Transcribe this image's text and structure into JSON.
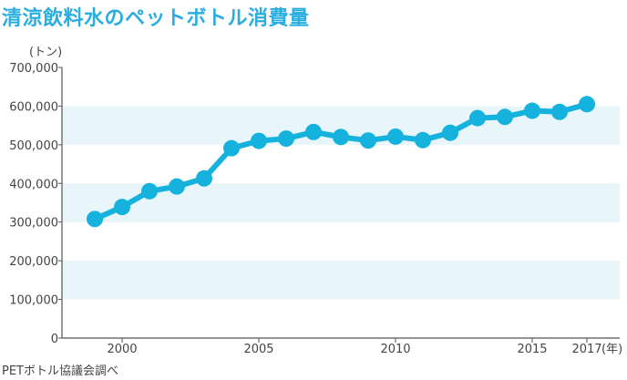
{
  "title": "清涼飲料水のペットボトル消費量",
  "source": "PETボトル協議会調べ",
  "colors": {
    "title": "#2aaee0",
    "line": "#16b2de",
    "band": "#e8f5fb",
    "axis": "#555555",
    "text": "#444444"
  },
  "chart_data": {
    "type": "line",
    "title": "清涼飲料水のペットボトル消費量",
    "ylabel": "(トン)",
    "xlabel": "(年)",
    "ylim": [
      0,
      700000
    ],
    "xlim": [
      1997.8,
      2018.2
    ],
    "yticks": [
      0,
      100000,
      200000,
      300000,
      400000,
      500000,
      600000,
      700000
    ],
    "ytick_labels": [
      "0",
      "100,000",
      "200,000",
      "300,000",
      "400,000",
      "500,000",
      "600,000",
      "700,000"
    ],
    "xticks": [
      2000,
      2005,
      2010,
      2015,
      2017
    ],
    "xtick_labels": [
      "2000",
      "2005",
      "2010",
      "2015",
      "2017"
    ],
    "grid": "alternating horizontal bands",
    "series": [
      {
        "x": [
          1999,
          2000,
          2001,
          2002,
          2003,
          2004,
          2005,
          2006,
          2007,
          2008,
          2009,
          2010,
          2011,
          2012,
          2013,
          2014,
          2015,
          2016,
          2017
        ],
        "values": [
          308000,
          339000,
          380000,
          392000,
          413000,
          491000,
          510000,
          516000,
          533000,
          520000,
          511000,
          521000,
          512000,
          531000,
          569000,
          572000,
          588000,
          585000,
          605000
        ]
      }
    ]
  }
}
